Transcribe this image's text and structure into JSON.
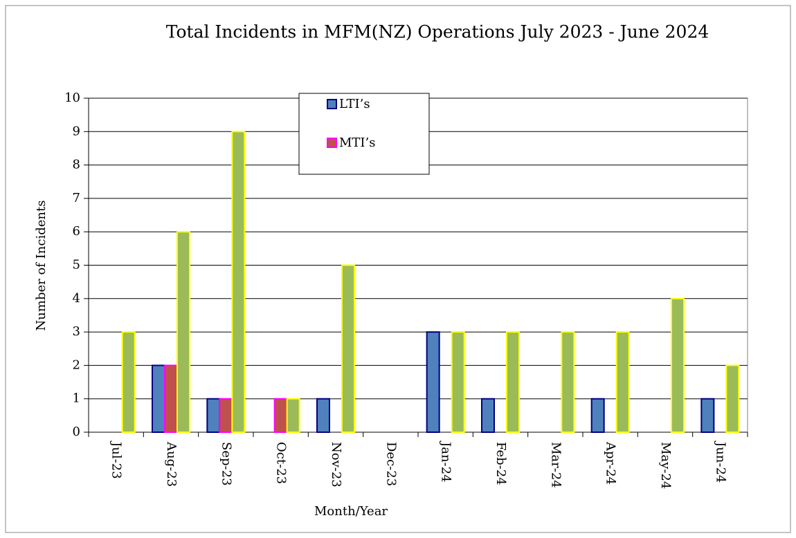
{
  "chart_data": {
    "type": "bar",
    "title": "Total Incidents in MFM(NZ) Operations July 2023 - June 2024",
    "x_label": "Month/Year",
    "y_label": "Number of Incidents",
    "categories": [
      "Jul-23",
      "Aug-23",
      "Sep-23",
      "Oct-23",
      "Nov-23",
      "Dec-23",
      "Jan-24",
      "Feb-24",
      "Mar-24",
      "Apr-24",
      "May-24",
      "Jun-24"
    ],
    "series": [
      {
        "name": "LTI’s",
        "color": "#4f81bd",
        "border": "#000080",
        "values": [
          0,
          2,
          1,
          0,
          1,
          0,
          3,
          1,
          0,
          1,
          0,
          1
        ]
      },
      {
        "name": "MTI’s",
        "color": "#c0504d",
        "border": "#ff00ff",
        "values": [
          0,
          2,
          1,
          1,
          0,
          0,
          0,
          0,
          0,
          0,
          0,
          0
        ]
      },
      {
        "color": "#9bbb59",
        "border": "#ffff00",
        "values": [
          3,
          6,
          9,
          1,
          5,
          0,
          3,
          3,
          3,
          3,
          4,
          2
        ]
      }
    ],
    "ylim": [
      0,
      10
    ],
    "yticks": [
      0,
      1,
      2,
      3,
      4,
      5,
      6,
      7,
      8,
      9,
      10
    ],
    "grid": true
  }
}
